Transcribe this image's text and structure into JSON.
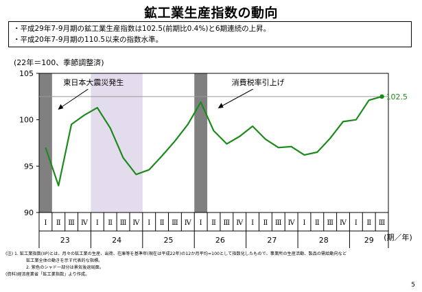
{
  "page": {
    "title": "鉱工業生産指数の動向",
    "summary": [
      "・平成29年7-9月期の鉱工業生産指数は102.5(前期比0.4%)と6期連続の上昇。",
      "・平成20年7-9月期の110.5以来の指数水準。"
    ],
    "unit_note": "(22年＝100、季節調整済)",
    "notes": [
      "(注) 1. 鉱工業指数(IIP)とは、月々の鉱工業の生産、出荷、在庫等を基準年(現在は平成22年)の12か月平均=100として指数化したもので、事業所の生産活動、製品の需給動向など",
      "鉱工業全体の動きを示す代表的な指標。",
      "2. 紫色のシャドー部分は景気後退局面。",
      "(資料)経済産業省「鉱工業指数」より作成。"
    ],
    "page_number": "5"
  },
  "chart_data": {
    "type": "line",
    "ylim": [
      90,
      105
    ],
    "yticks": [
      90,
      95,
      100,
      105
    ],
    "quarter_labels": [
      "Ⅰ",
      "Ⅱ",
      "Ⅲ",
      "Ⅳ",
      "Ⅰ",
      "Ⅱ",
      "Ⅲ",
      "Ⅳ",
      "Ⅰ",
      "Ⅱ",
      "Ⅲ",
      "Ⅳ",
      "Ⅰ",
      "Ⅱ",
      "Ⅲ",
      "Ⅳ",
      "Ⅰ",
      "Ⅱ",
      "Ⅲ",
      "Ⅳ",
      "Ⅰ",
      "Ⅱ",
      "Ⅲ",
      "Ⅳ",
      "Ⅰ",
      "Ⅱ",
      "Ⅲ"
    ],
    "year_groups": [
      {
        "label": "23",
        "start": 0,
        "end": 3
      },
      {
        "label": "24",
        "start": 4,
        "end": 7
      },
      {
        "label": "25",
        "start": 8,
        "end": 11
      },
      {
        "label": "26",
        "start": 12,
        "end": 15
      },
      {
        "label": "27",
        "start": 16,
        "end": 19
      },
      {
        "label": "28",
        "start": 20,
        "end": 23
      },
      {
        "label": "29",
        "start": 24,
        "end": 26
      }
    ],
    "axis_suffix": "(期／年)",
    "series": [
      {
        "color": "#1a8a1a",
        "values": [
          97.0,
          92.9,
          99.5,
          100.5,
          101.3,
          99.1,
          95.9,
          94.1,
          94.6,
          96.1,
          97.7,
          99.5,
          101.9,
          98.8,
          97.4,
          98.2,
          99.3,
          97.9,
          97.0,
          97.1,
          96.2,
          96.5,
          98.0,
          99.8,
          100.0,
          102.1,
          102.5
        ]
      }
    ],
    "end_label": "102.5",
    "reference_line": {
      "value": 102.5,
      "color": "#999999"
    },
    "shaded_periods": [
      {
        "start": 0,
        "end": 0,
        "color": "#808080"
      },
      {
        "start": 4,
        "end": 7,
        "color": "#e2dcec"
      },
      {
        "start": 12,
        "end": 12,
        "color": "#808080"
      }
    ],
    "annotations": [
      {
        "text": "東日本大震災発生",
        "target_index": 0
      },
      {
        "text": "消費税率引上げ",
        "target_index": 12
      }
    ]
  }
}
